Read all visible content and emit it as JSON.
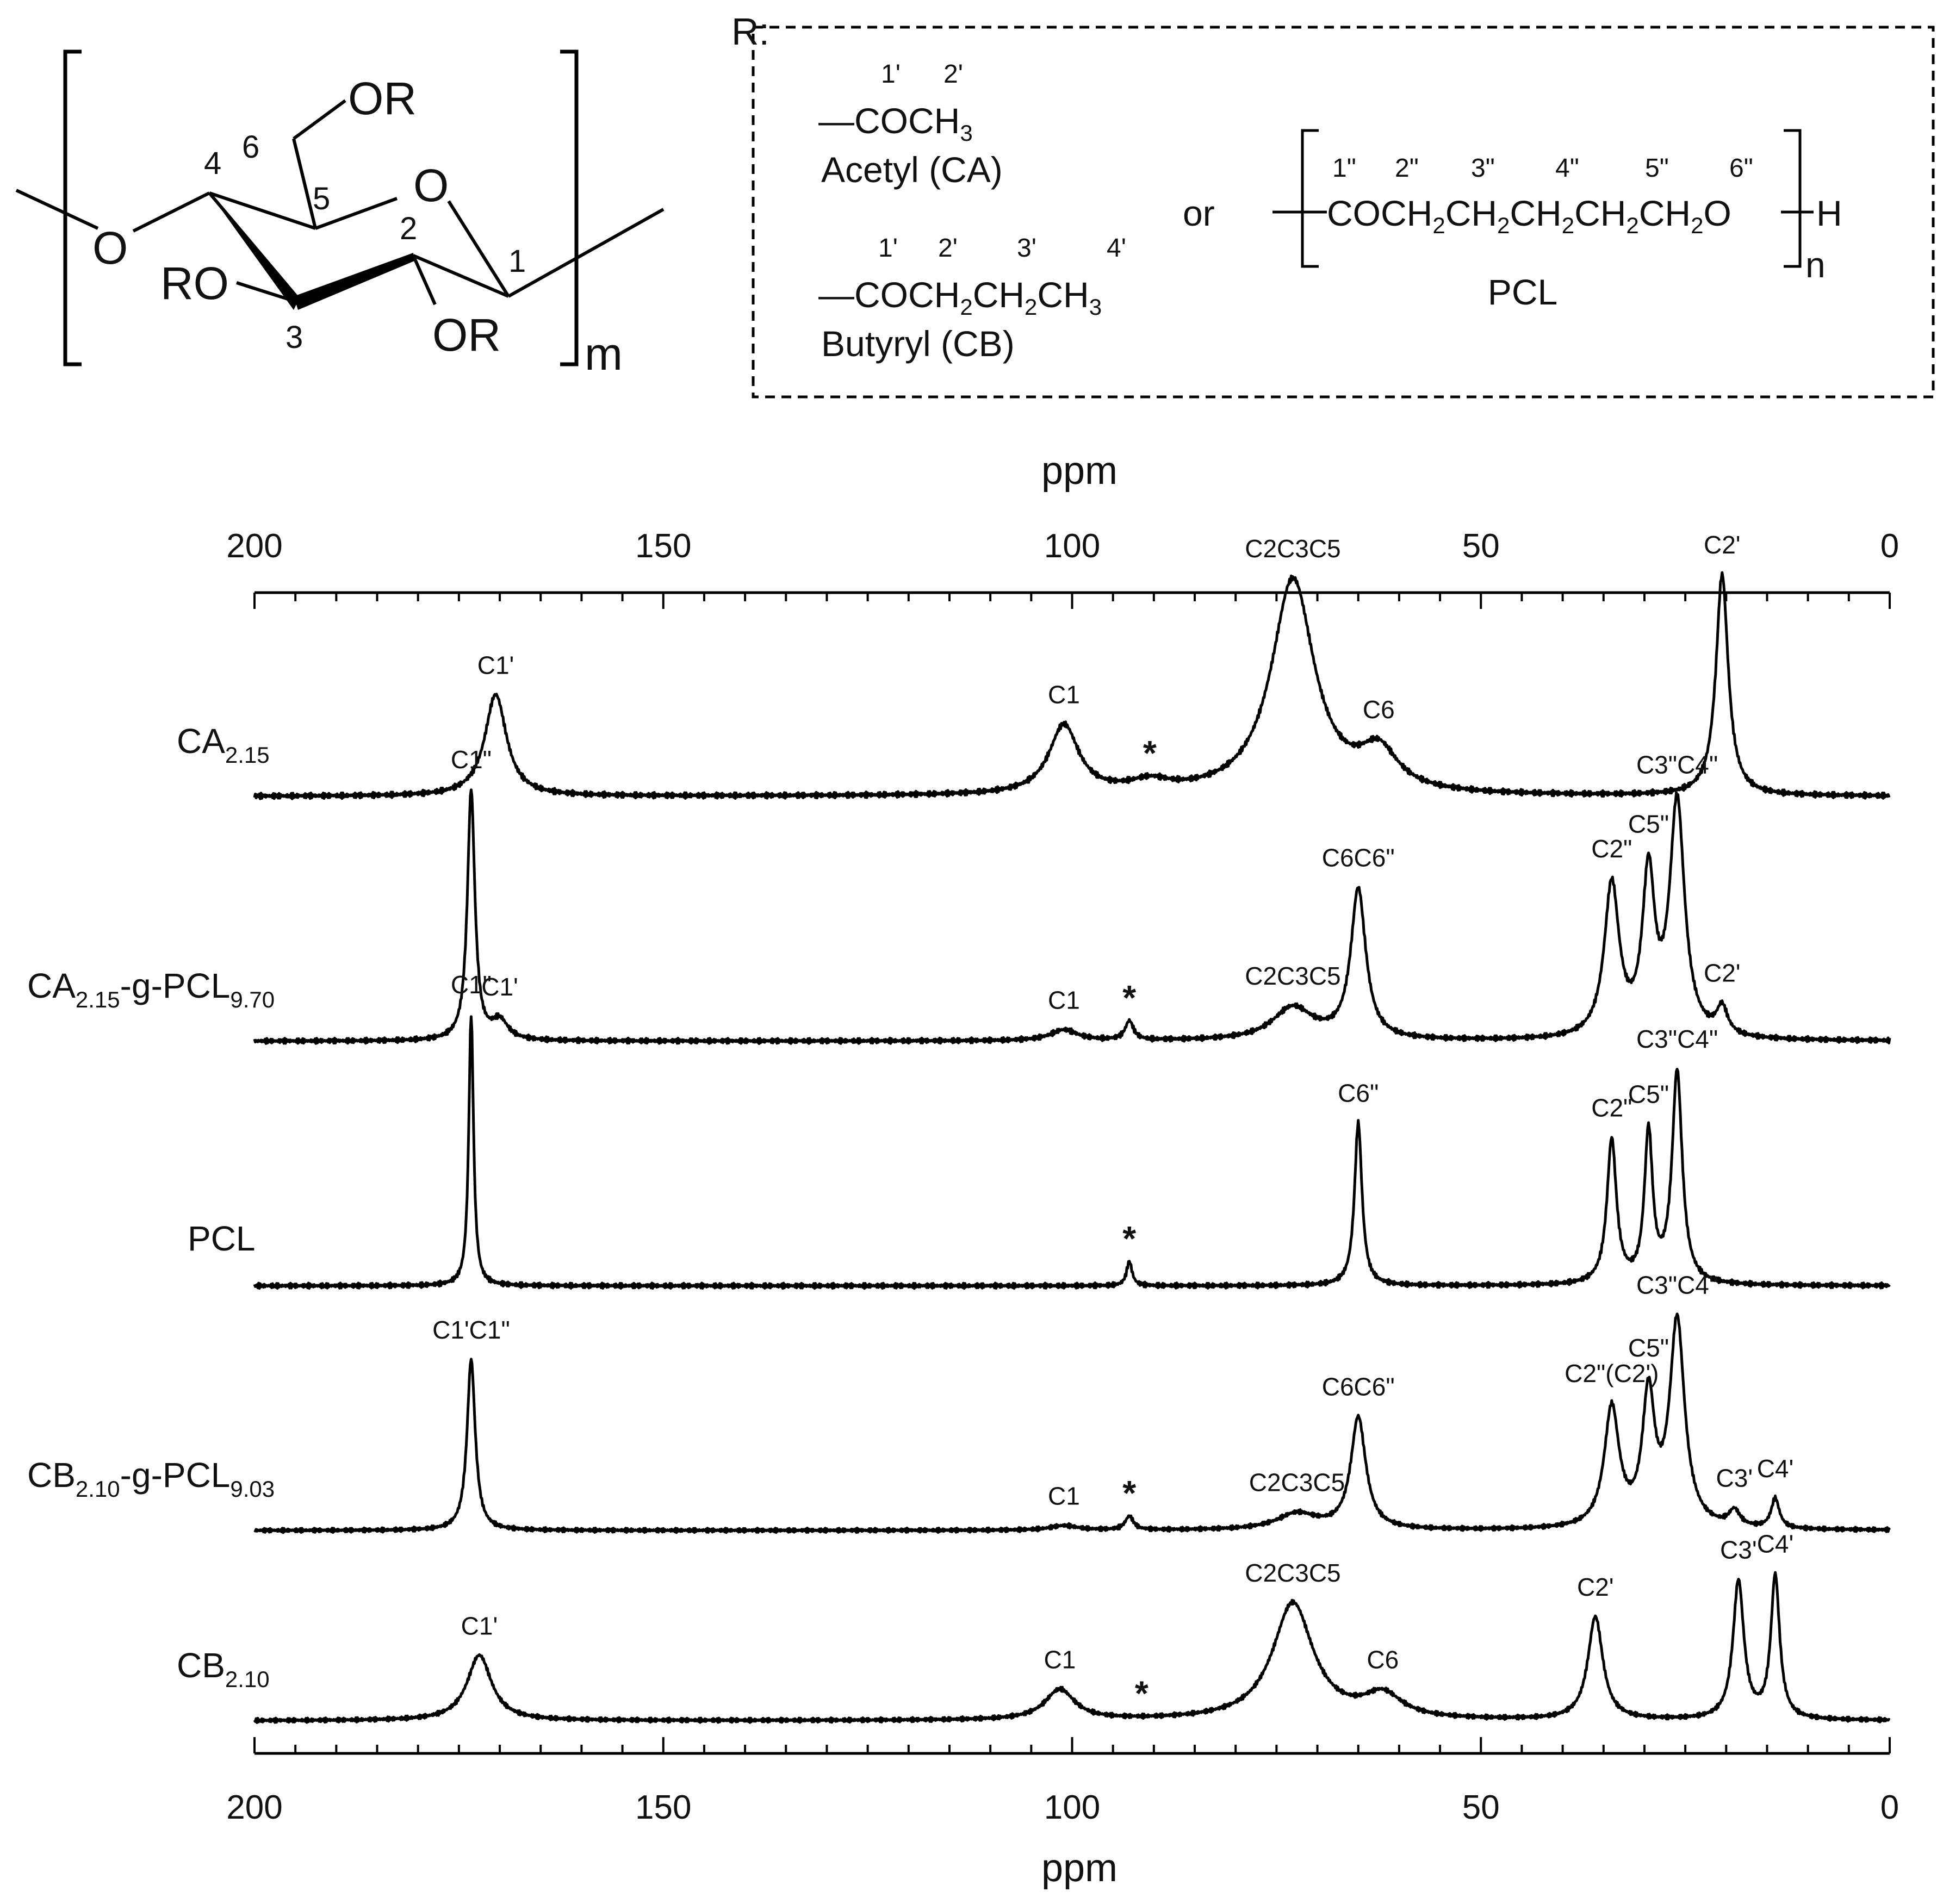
{
  "structure": {
    "ring_labels": [
      "O",
      "O",
      "RO",
      "OR",
      "OR"
    ],
    "positions": [
      "1",
      "2",
      "3",
      "4",
      "5",
      "6"
    ],
    "repeat": "m"
  },
  "substituents": {
    "r_label": "R:",
    "acetyl": {
      "numbers": [
        "1'",
        "2'"
      ],
      "formula": "—COCH3",
      "name": "Acetyl  (CA)"
    },
    "butyryl": {
      "numbers": [
        "1'",
        "2'",
        "3'",
        "4'"
      ],
      "formula": "—COCH2CH2CH3",
      "name": "Butyryl  (CB)"
    },
    "or_word": "or",
    "pcl": {
      "numbers": [
        "1\"",
        "2\"",
        "3\"",
        "4\"",
        "5\"",
        "6\""
      ],
      "formula": "COCH2CH2CH2CH2CH2O",
      "end": "H",
      "repeat": "n",
      "name": "PCL"
    }
  },
  "chart_data": {
    "type": "line",
    "xlabel": "ppm",
    "xlim": [
      200,
      0
    ],
    "x_ticks": [
      200,
      150,
      100,
      50,
      0
    ],
    "reversed_x": true,
    "series": [
      {
        "name": "CA2.15",
        "label_main": "CA",
        "label_sub": "2.15",
        "peaks": [
          {
            "ppm": 170.5,
            "height": 0.34,
            "width": 1.6,
            "label": "C1'"
          },
          {
            "ppm": 101.0,
            "height": 0.23,
            "width": 2.2,
            "label": "C1"
          },
          {
            "ppm": 90.5,
            "height": 0.035,
            "width": 3.0,
            "label": "*"
          },
          {
            "ppm": 73.0,
            "height": 0.72,
            "width": 3.2,
            "label": "C2C3C5"
          },
          {
            "ppm": 62.5,
            "height": 0.13,
            "width": 2.8,
            "label": "C6"
          },
          {
            "ppm": 20.5,
            "height": 0.74,
            "width": 0.9,
            "label": "C2'"
          }
        ]
      },
      {
        "name": "CA2.15-g-PCL9.70",
        "label_main": "CA",
        "label_sub": "2.15",
        "label_graft": "-g-PCL",
        "label_sub2": "9.70",
        "peaks": [
          {
            "ppm": 173.5,
            "height": 0.92,
            "width": 0.55,
            "label": "C1\""
          },
          {
            "ppm": 170.0,
            "height": 0.07,
            "width": 1.2,
            "label": "C1'"
          },
          {
            "ppm": 101.0,
            "height": 0.04,
            "width": 2.0,
            "label": "C1"
          },
          {
            "ppm": 93.0,
            "height": 0.07,
            "width": 0.6,
            "label": "*"
          },
          {
            "ppm": 73.0,
            "height": 0.12,
            "width": 3.0,
            "label": "C2C3C5"
          },
          {
            "ppm": 65.0,
            "height": 0.55,
            "width": 1.1,
            "label": "C6C6\""
          },
          {
            "ppm": 34.0,
            "height": 0.56,
            "width": 1.1,
            "label": "C2\""
          },
          {
            "ppm": 29.5,
            "height": 0.58,
            "width": 0.9,
            "label": "C5\""
          },
          {
            "ppm": 26.0,
            "height": 0.86,
            "width": 1.1,
            "label": "C3\"C4\""
          },
          {
            "ppm": 20.5,
            "height": 0.1,
            "width": 0.8,
            "label": "C2'"
          }
        ]
      },
      {
        "name": "PCL",
        "label_main": "PCL",
        "peaks": [
          {
            "ppm": 173.5,
            "height": 1.0,
            "width": 0.35,
            "label": "C1\""
          },
          {
            "ppm": 93.0,
            "height": 0.09,
            "width": 0.4,
            "label": "*"
          },
          {
            "ppm": 65.0,
            "height": 0.6,
            "width": 0.55,
            "label": "C6\""
          },
          {
            "ppm": 34.0,
            "height": 0.53,
            "width": 0.7,
            "label": "C2\""
          },
          {
            "ppm": 29.5,
            "height": 0.55,
            "width": 0.6,
            "label": "C5\""
          },
          {
            "ppm": 26.0,
            "height": 0.78,
            "width": 0.75,
            "label": "C3\"C4\""
          }
        ]
      },
      {
        "name": "CB2.10-g-PCL9.03",
        "label_main": "CB",
        "label_sub": "2.10",
        "label_graft": "-g-PCL",
        "label_sub2": "9.03",
        "peaks": [
          {
            "ppm": 173.5,
            "height": 0.75,
            "width": 0.6,
            "label": "C1'C1\""
          },
          {
            "ppm": 101.0,
            "height": 0.02,
            "width": 2.0,
            "label": "C1"
          },
          {
            "ppm": 93.0,
            "height": 0.06,
            "width": 0.6,
            "label": "*"
          },
          {
            "ppm": 72.5,
            "height": 0.07,
            "width": 3.0,
            "label": "C2C3C5"
          },
          {
            "ppm": 65.0,
            "height": 0.49,
            "width": 1.1,
            "label": "C6C6\""
          },
          {
            "ppm": 34.0,
            "height": 0.52,
            "width": 1.1,
            "label": "C2\"(C2')"
          },
          {
            "ppm": 29.5,
            "height": 0.56,
            "width": 0.9,
            "label": "C5\""
          },
          {
            "ppm": 26.0,
            "height": 0.9,
            "width": 1.1,
            "label": "C3\"C4\""
          },
          {
            "ppm": 19.0,
            "height": 0.07,
            "width": 0.8,
            "label": "C3'"
          },
          {
            "ppm": 14.0,
            "height": 0.13,
            "width": 0.6,
            "label": "C4'"
          }
        ]
      },
      {
        "name": "CB2.10",
        "label_main": "CB",
        "label_sub": "2.10",
        "peaks": [
          {
            "ppm": 172.5,
            "height": 0.28,
            "width": 1.8,
            "label": "C1'"
          },
          {
            "ppm": 101.5,
            "height": 0.13,
            "width": 2.2,
            "label": "C1"
          },
          {
            "ppm": 91.5,
            "height": 0.0,
            "width": 2.0,
            "label": "*"
          },
          {
            "ppm": 73.0,
            "height": 0.5,
            "width": 3.0,
            "label": "C2C3C5"
          },
          {
            "ppm": 62.0,
            "height": 0.1,
            "width": 2.8,
            "label": "C6"
          },
          {
            "ppm": 36.0,
            "height": 0.44,
            "width": 1.1,
            "label": "C2'"
          },
          {
            "ppm": 18.5,
            "height": 0.59,
            "width": 0.8,
            "label": "C3'"
          },
          {
            "ppm": 14.0,
            "height": 0.61,
            "width": 0.65,
            "label": "C4'"
          }
        ]
      }
    ]
  }
}
